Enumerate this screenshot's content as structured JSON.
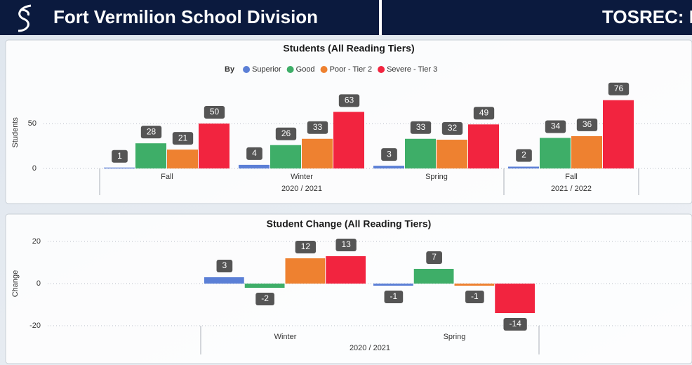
{
  "header": {
    "title": "Fort Vermilion School Division",
    "right_title": "TOSREC: B"
  },
  "chart_data": [
    {
      "type": "bar",
      "title": "Students (All Reading Tiers)",
      "y_label": "Students",
      "legend_title": "By",
      "legend": "top",
      "categories": [
        "Fall",
        "Winter",
        "Spring",
        "Fall"
      ],
      "category_groups": [
        "2020 / 2021",
        "2020 / 2021",
        "2020 / 2021",
        "2021 / 2022"
      ],
      "series": [
        {
          "name": "Superior",
          "color": "#5b7fd6",
          "values": [
            1,
            4,
            3,
            2
          ]
        },
        {
          "name": "Good",
          "color": "#3eae68",
          "values": [
            28,
            26,
            33,
            34
          ]
        },
        {
          "name": "Poor - Tier 2",
          "color": "#ee8130",
          "values": [
            21,
            33,
            32,
            36
          ]
        },
        {
          "name": "Severe - Tier 3",
          "color": "#f2243f",
          "values": [
            50,
            63,
            49,
            76
          ]
        }
      ],
      "ylim": [
        0,
        80
      ],
      "yticks": [
        0,
        50
      ],
      "grid": true
    },
    {
      "type": "bar",
      "title": "Student Change (All Reading Tiers)",
      "y_label": "Change",
      "categories": [
        "Winter",
        "Spring"
      ],
      "category_groups": [
        "2020 / 2021",
        "2020 / 2021"
      ],
      "series": [
        {
          "name": "Superior",
          "color": "#5b7fd6",
          "values": [
            3,
            -1
          ]
        },
        {
          "name": "Good",
          "color": "#3eae68",
          "values": [
            -2,
            7
          ]
        },
        {
          "name": "Poor - Tier 2",
          "color": "#ee8130",
          "values": [
            12,
            -1
          ]
        },
        {
          "name": "Severe - Tier 3",
          "color": "#f2243f",
          "values": [
            13,
            -14
          ]
        }
      ],
      "ylim": [
        -20,
        20
      ],
      "yticks": [
        -20,
        0,
        20
      ],
      "grid": true
    }
  ]
}
